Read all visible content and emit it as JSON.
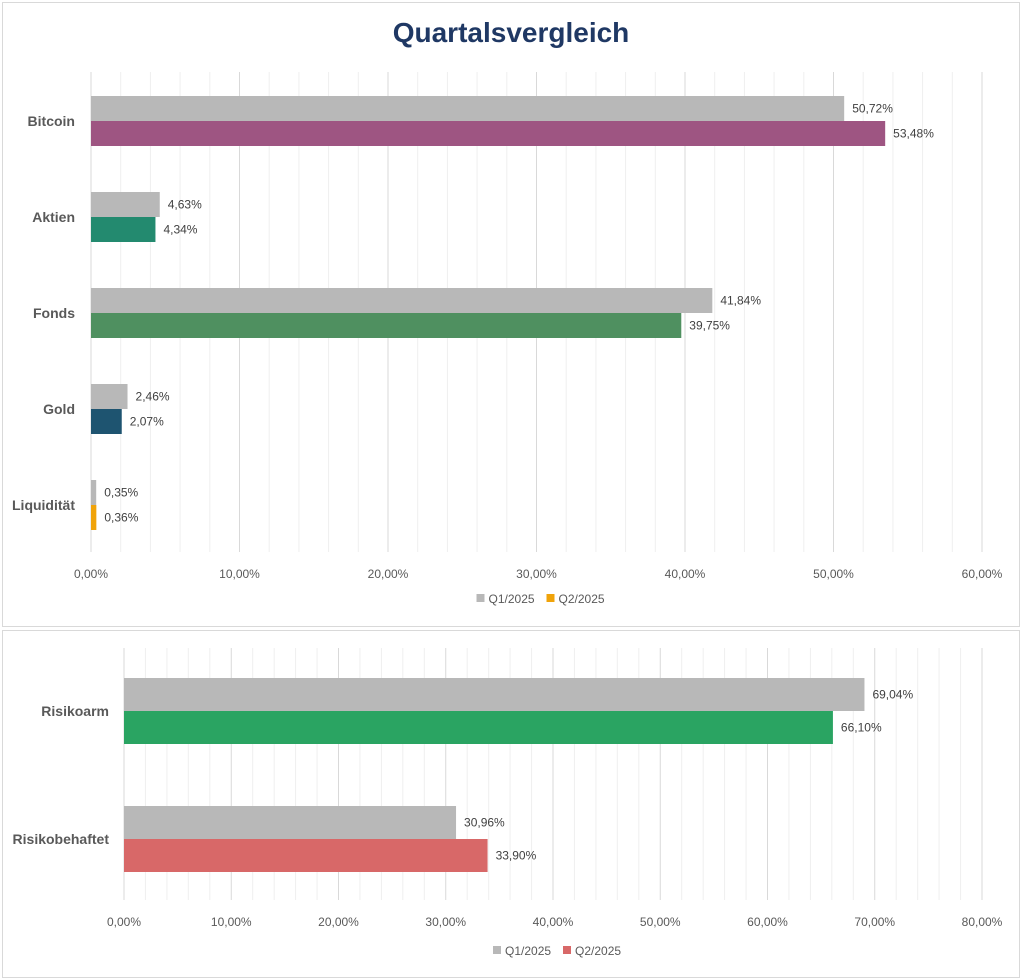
{
  "chart_data": [
    {
      "type": "bar",
      "orientation": "horizontal",
      "title": "Quartalsvergleich",
      "categories": [
        "Bitcoin",
        "Aktien",
        "Fonds",
        "Gold",
        "Liquidität"
      ],
      "series": [
        {
          "name": "Q1/2025",
          "values": [
            50.72,
            4.63,
            41.84,
            2.46,
            0.35
          ],
          "labels": [
            "50,72%",
            "4,63%",
            "41,84%",
            "2,46%",
            "0,35%"
          ],
          "color": "#b8b8b8"
        },
        {
          "name": "Q2/2025",
          "values": [
            53.48,
            4.34,
            39.75,
            2.07,
            0.36
          ],
          "labels": [
            "53,48%",
            "4,34%",
            "39,75%",
            "2,07%",
            "0,36%"
          ],
          "colors": [
            "#9e5582",
            "#238a6f",
            "#4f9060",
            "#1e5470",
            "#f0a30a"
          ]
        }
      ],
      "xlim": [
        0,
        60
      ],
      "xticks": [
        0,
        10,
        20,
        30,
        40,
        50,
        60
      ],
      "xtick_labels": [
        "0,00%",
        "10,00%",
        "20,00%",
        "30,00%",
        "40,00%",
        "50,00%",
        "60,00%"
      ],
      "minor_grid_step": 2,
      "grid": true,
      "legend": {
        "position": "bottom",
        "entries": [
          {
            "label": "Q1/2025",
            "color": "#b8b8b8"
          },
          {
            "label": "Q2/2025",
            "color": "#f0a30a"
          }
        ]
      }
    },
    {
      "type": "bar",
      "orientation": "horizontal",
      "title": "",
      "categories": [
        "Risikoarm",
        "Risikobehaftet"
      ],
      "series": [
        {
          "name": "Q1/2025",
          "values": [
            69.04,
            30.96
          ],
          "labels": [
            "69,04%",
            "30,96%"
          ],
          "color": "#b8b8b8"
        },
        {
          "name": "Q2/2025",
          "values": [
            66.1,
            33.9
          ],
          "labels": [
            "66,10%",
            "33,90%"
          ],
          "colors": [
            "#2aa462",
            "#d86868"
          ]
        }
      ],
      "xlim": [
        0,
        80
      ],
      "xticks": [
        0,
        10,
        20,
        30,
        40,
        50,
        60,
        70,
        80
      ],
      "xtick_labels": [
        "0,00%",
        "10,00%",
        "20,00%",
        "30,00%",
        "40,00%",
        "50,00%",
        "60,00%",
        "70,00%",
        "80,00%"
      ],
      "minor_grid_step": 2,
      "grid": true,
      "legend": {
        "position": "bottom",
        "entries": [
          {
            "label": "Q1/2025",
            "color": "#b8b8b8"
          },
          {
            "label": "Q2/2025",
            "color": "#d86868"
          }
        ]
      }
    }
  ]
}
